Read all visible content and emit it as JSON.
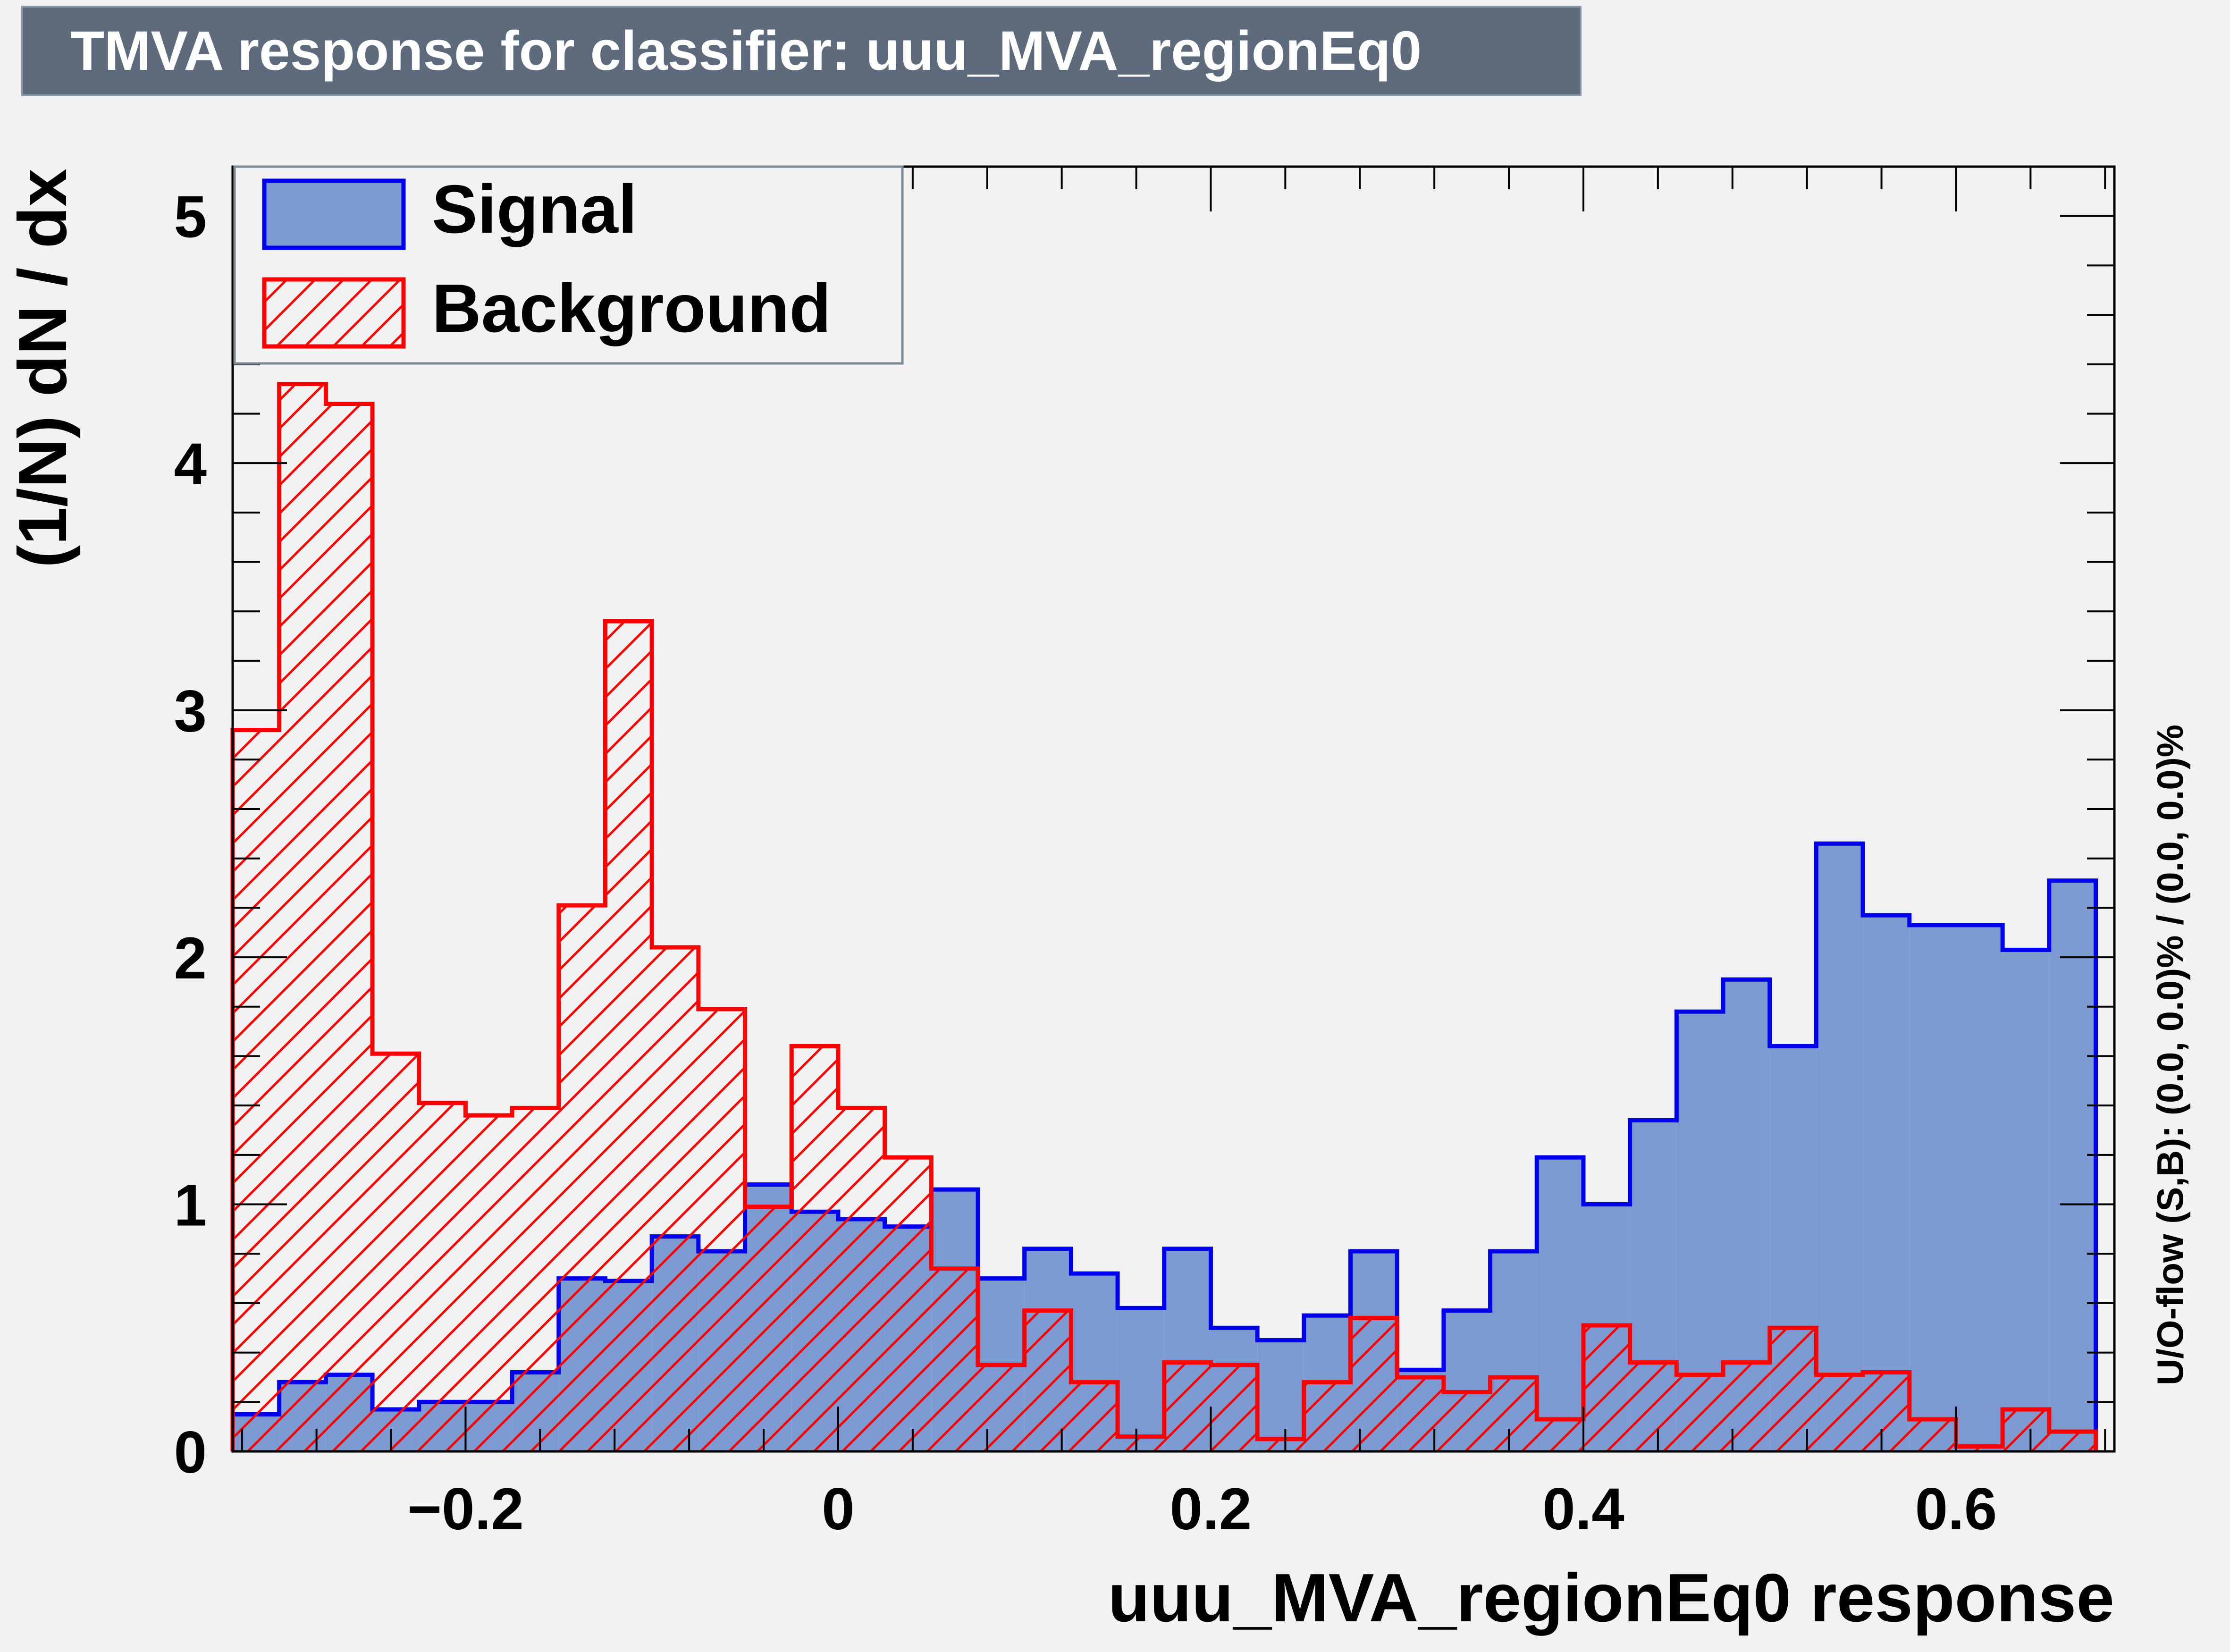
{
  "title": "TMVA response for classifier: uuu_MVA_regionEq0",
  "overflow_label": "U/O-flow (S,B): (0.0, 0.0)% / (0.0, 0.0)%",
  "colors": {
    "signal_fill": "#7d99d1",
    "signal_line": "#0000ee",
    "background_line": "#ff0000",
    "frame_bg": "#f2f2f2",
    "title_bg": "#5d6b7d"
  },
  "legend": {
    "signal": "Signal",
    "background": "Background",
    "placement": "top-left"
  },
  "chart_data": {
    "type": "histogram",
    "title": "TMVA response for classifier: uuu_MVA_regionEq0",
    "xlabel": "uuu_MVA_regionEq0 response",
    "ylabel": "(1/N) dN / dx",
    "xlim": [
      -0.325,
      0.685
    ],
    "ylim": [
      0,
      5.2
    ],
    "x_ticks": [
      -0.2,
      0,
      0.2,
      0.4,
      0.6
    ],
    "x_tick_labels": [
      "−0.2",
      "0",
      "0.2",
      "0.4",
      "0.6"
    ],
    "y_ticks": [
      0,
      1,
      2,
      3,
      4,
      5
    ],
    "y_tick_labels": [
      "0",
      "1",
      "2",
      "3",
      "4",
      "5"
    ],
    "bin_width": 0.025,
    "bins": 40,
    "series": [
      {
        "name": "Signal",
        "values": [
          0.15,
          0.28,
          0.31,
          0.17,
          0.2,
          0.2,
          0.32,
          0.7,
          0.69,
          0.87,
          0.81,
          1.08,
          0.97,
          0.94,
          0.91,
          1.06,
          0.7,
          0.82,
          0.72,
          0.58,
          0.82,
          0.5,
          0.45,
          0.55,
          0.81,
          0.33,
          0.57,
          0.81,
          1.19,
          1.0,
          1.34,
          1.78,
          1.91,
          1.64,
          2.46,
          2.17,
          2.13,
          2.13,
          2.03,
          2.31
        ]
      },
      {
        "name": "Background",
        "values": [
          2.92,
          4.32,
          4.24,
          1.61,
          1.41,
          1.36,
          1.39,
          2.21,
          3.36,
          2.04,
          1.79,
          0.99,
          1.64,
          1.39,
          1.19,
          0.74,
          0.35,
          0.57,
          0.28,
          0.06,
          0.36,
          0.35,
          0.05,
          0.28,
          0.54,
          0.3,
          0.24,
          0.3,
          0.13,
          0.51,
          0.36,
          0.31,
          0.36,
          0.5,
          0.31,
          0.32,
          0.13,
          0.02,
          0.17,
          0.08
        ]
      }
    ],
    "grid": false
  }
}
